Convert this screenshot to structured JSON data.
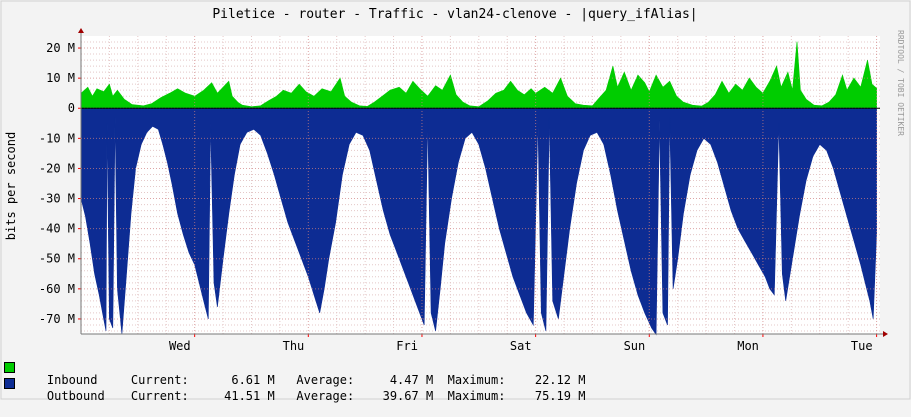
{
  "watermark": "RRDTOOL / TOBI OETIKER",
  "chart_data": {
    "type": "area",
    "title": "Piletice - router - Traffic - vlan24-clenove - |query_ifAlias|",
    "ylabel": "bits per second",
    "ylim": [
      -75000000,
      24000000
    ],
    "y_ticks": [
      {
        "value": 20000000,
        "label": "20 M"
      },
      {
        "value": 10000000,
        "label": "10 M"
      },
      {
        "value": 0,
        "label": "0"
      },
      {
        "value": -10000000,
        "label": "-10 M"
      },
      {
        "value": -20000000,
        "label": "-20 M"
      },
      {
        "value": -30000000,
        "label": "-30 M"
      },
      {
        "value": -40000000,
        "label": "-40 M"
      },
      {
        "value": -50000000,
        "label": "-50 M"
      },
      {
        "value": -60000000,
        "label": "-60 M"
      },
      {
        "value": -70000000,
        "label": "-70 M"
      }
    ],
    "x_ticks": [
      {
        "value": 1,
        "label": "Wed"
      },
      {
        "value": 2,
        "label": "Thu"
      },
      {
        "value": 3,
        "label": "Fri"
      },
      {
        "value": 4,
        "label": "Sat"
      },
      {
        "value": 5,
        "label": "Sun"
      },
      {
        "value": 6,
        "label": "Mon"
      },
      {
        "value": 7,
        "label": "Tue"
      }
    ],
    "xlim": [
      0,
      7.03
    ],
    "grid": true,
    "series": [
      {
        "name": "Inbound",
        "color": "#00cc00",
        "current": "6.61 M",
        "average": "4.47 M",
        "maximum": "22.12 M",
        "points": [
          [
            0.0,
            5.0
          ],
          [
            0.06,
            7.0
          ],
          [
            0.1,
            4.0
          ],
          [
            0.14,
            6.5
          ],
          [
            0.2,
            5.5
          ],
          [
            0.25,
            8.0
          ],
          [
            0.28,
            4.0
          ],
          [
            0.32,
            6.0
          ],
          [
            0.38,
            3.0
          ],
          [
            0.45,
            1.2
          ],
          [
            0.55,
            0.8
          ],
          [
            0.62,
            1.5
          ],
          [
            0.7,
            3.5
          ],
          [
            0.78,
            5.0
          ],
          [
            0.85,
            6.5
          ],
          [
            0.92,
            5.0
          ],
          [
            1.0,
            4.0
          ],
          [
            1.08,
            6.0
          ],
          [
            1.15,
            8.5
          ],
          [
            1.2,
            5.0
          ],
          [
            1.25,
            7.0
          ],
          [
            1.3,
            9.0
          ],
          [
            1.33,
            4.0
          ],
          [
            1.38,
            2.0
          ],
          [
            1.42,
            1.0
          ],
          [
            1.5,
            0.5
          ],
          [
            1.58,
            0.8
          ],
          [
            1.65,
            2.5
          ],
          [
            1.72,
            4.0
          ],
          [
            1.78,
            6.0
          ],
          [
            1.85,
            5.0
          ],
          [
            1.92,
            8.0
          ],
          [
            1.98,
            5.5
          ],
          [
            2.05,
            4.0
          ],
          [
            2.12,
            6.5
          ],
          [
            2.2,
            5.5
          ],
          [
            2.28,
            10.0
          ],
          [
            2.32,
            4.0
          ],
          [
            2.38,
            2.0
          ],
          [
            2.45,
            0.8
          ],
          [
            2.52,
            0.6
          ],
          [
            2.58,
            2.0
          ],
          [
            2.65,
            4.0
          ],
          [
            2.72,
            6.0
          ],
          [
            2.8,
            7.0
          ],
          [
            2.86,
            5.0
          ],
          [
            2.92,
            9.0
          ],
          [
            2.98,
            6.5
          ],
          [
            3.05,
            4.0
          ],
          [
            3.12,
            7.5
          ],
          [
            3.18,
            6.0
          ],
          [
            3.25,
            11.0
          ],
          [
            3.3,
            4.5
          ],
          [
            3.36,
            2.0
          ],
          [
            3.42,
            0.8
          ],
          [
            3.5,
            0.5
          ],
          [
            3.58,
            2.5
          ],
          [
            3.65,
            5.0
          ],
          [
            3.72,
            6.0
          ],
          [
            3.78,
            9.0
          ],
          [
            3.84,
            6.0
          ],
          [
            3.9,
            4.5
          ],
          [
            3.96,
            6.5
          ],
          [
            4.0,
            5.0
          ],
          [
            4.08,
            7.0
          ],
          [
            4.15,
            5.0
          ],
          [
            4.22,
            10.0
          ],
          [
            4.28,
            4.0
          ],
          [
            4.35,
            1.5
          ],
          [
            4.42,
            1.0
          ],
          [
            4.5,
            0.8
          ],
          [
            4.55,
            3.0
          ],
          [
            4.62,
            6.0
          ],
          [
            4.68,
            14.0
          ],
          [
            4.72,
            7.0
          ],
          [
            4.78,
            12.0
          ],
          [
            4.84,
            6.0
          ],
          [
            4.9,
            11.0
          ],
          [
            4.96,
            8.5
          ],
          [
            5.0,
            5.5
          ],
          [
            5.06,
            11.0
          ],
          [
            5.12,
            7.0
          ],
          [
            5.18,
            9.0
          ],
          [
            5.24,
            4.0
          ],
          [
            5.3,
            2.0
          ],
          [
            5.38,
            1.0
          ],
          [
            5.46,
            0.7
          ],
          [
            5.52,
            2.0
          ],
          [
            5.58,
            4.5
          ],
          [
            5.64,
            9.0
          ],
          [
            5.7,
            5.0
          ],
          [
            5.76,
            8.0
          ],
          [
            5.82,
            6.0
          ],
          [
            5.88,
            10.0
          ],
          [
            5.94,
            7.0
          ],
          [
            6.0,
            5.0
          ],
          [
            6.06,
            9.0
          ],
          [
            6.12,
            14.0
          ],
          [
            6.16,
            7.0
          ],
          [
            6.22,
            12.0
          ],
          [
            6.26,
            6.0
          ],
          [
            6.3,
            22.12
          ],
          [
            6.33,
            6.0
          ],
          [
            6.38,
            3.0
          ],
          [
            6.45,
            1.0
          ],
          [
            6.52,
            0.8
          ],
          [
            6.58,
            2.0
          ],
          [
            6.64,
            4.5
          ],
          [
            6.7,
            11.0
          ],
          [
            6.74,
            6.0
          ],
          [
            6.8,
            10.0
          ],
          [
            6.86,
            7.0
          ],
          [
            6.92,
            16.0
          ],
          [
            6.96,
            8.0
          ],
          [
            7.0,
            6.61
          ]
        ]
      },
      {
        "name": "Outbound",
        "color": "#0d2c93",
        "current": "41.51 M",
        "average": "39.67 M",
        "maximum": "75.19 M",
        "points": [
          [
            0.0,
            -30.0
          ],
          [
            0.04,
            -36.0
          ],
          [
            0.08,
            -45.0
          ],
          [
            0.12,
            -55.0
          ],
          [
            0.16,
            -62.0
          ],
          [
            0.2,
            -70.0
          ],
          [
            0.22,
            -74.0
          ],
          [
            0.23,
            -5.0
          ],
          [
            0.25,
            -70.0
          ],
          [
            0.28,
            -73.0
          ],
          [
            0.3,
            -3.0
          ],
          [
            0.32,
            -60.0
          ],
          [
            0.36,
            -75.0
          ],
          [
            0.4,
            -55.0
          ],
          [
            0.44,
            -35.0
          ],
          [
            0.48,
            -20.0
          ],
          [
            0.53,
            -12.0
          ],
          [
            0.58,
            -8.0
          ],
          [
            0.63,
            -6.0
          ],
          [
            0.68,
            -7.0
          ],
          [
            0.72,
            -12.0
          ],
          [
            0.76,
            -18.0
          ],
          [
            0.8,
            -25.0
          ],
          [
            0.85,
            -35.0
          ],
          [
            0.9,
            -42.0
          ],
          [
            0.95,
            -48.0
          ],
          [
            1.0,
            -52.0
          ],
          [
            1.04,
            -58.0
          ],
          [
            1.08,
            -64.0
          ],
          [
            1.12,
            -70.0
          ],
          [
            1.14,
            -5.0
          ],
          [
            1.17,
            -58.0
          ],
          [
            1.2,
            -66.0
          ],
          [
            1.25,
            -50.0
          ],
          [
            1.3,
            -35.0
          ],
          [
            1.35,
            -22.0
          ],
          [
            1.4,
            -12.0
          ],
          [
            1.46,
            -8.0
          ],
          [
            1.52,
            -7.0
          ],
          [
            1.58,
            -9.0
          ],
          [
            1.64,
            -15.0
          ],
          [
            1.7,
            -22.0
          ],
          [
            1.76,
            -30.0
          ],
          [
            1.82,
            -38.0
          ],
          [
            1.88,
            -44.0
          ],
          [
            1.94,
            -50.0
          ],
          [
            2.0,
            -56.0
          ],
          [
            2.05,
            -62.0
          ],
          [
            2.1,
            -68.0
          ],
          [
            2.14,
            -60.0
          ],
          [
            2.18,
            -50.0
          ],
          [
            2.24,
            -38.0
          ],
          [
            2.3,
            -22.0
          ],
          [
            2.36,
            -12.0
          ],
          [
            2.42,
            -8.0
          ],
          [
            2.48,
            -9.0
          ],
          [
            2.54,
            -14.0
          ],
          [
            2.6,
            -24.0
          ],
          [
            2.66,
            -34.0
          ],
          [
            2.72,
            -42.0
          ],
          [
            2.78,
            -48.0
          ],
          [
            2.84,
            -54.0
          ],
          [
            2.9,
            -60.0
          ],
          [
            2.96,
            -66.0
          ],
          [
            3.02,
            -72.0
          ],
          [
            3.05,
            -4.0
          ],
          [
            3.08,
            -68.0
          ],
          [
            3.12,
            -74.0
          ],
          [
            3.16,
            -60.0
          ],
          [
            3.2,
            -45.0
          ],
          [
            3.26,
            -30.0
          ],
          [
            3.32,
            -18.0
          ],
          [
            3.38,
            -10.0
          ],
          [
            3.44,
            -8.0
          ],
          [
            3.5,
            -12.0
          ],
          [
            3.56,
            -20.0
          ],
          [
            3.62,
            -30.0
          ],
          [
            3.68,
            -40.0
          ],
          [
            3.74,
            -48.0
          ],
          [
            3.8,
            -56.0
          ],
          [
            3.86,
            -62.0
          ],
          [
            3.92,
            -68.0
          ],
          [
            3.98,
            -72.0
          ],
          [
            4.02,
            -4.0
          ],
          [
            4.05,
            -68.0
          ],
          [
            4.09,
            -74.0
          ],
          [
            4.12,
            -3.0
          ],
          [
            4.15,
            -64.0
          ],
          [
            4.2,
            -70.0
          ],
          [
            4.25,
            -55.0
          ],
          [
            4.3,
            -40.0
          ],
          [
            4.36,
            -25.0
          ],
          [
            4.42,
            -14.0
          ],
          [
            4.48,
            -9.0
          ],
          [
            4.54,
            -8.0
          ],
          [
            4.6,
            -12.0
          ],
          [
            4.66,
            -22.0
          ],
          [
            4.72,
            -34.0
          ],
          [
            4.78,
            -44.0
          ],
          [
            4.84,
            -54.0
          ],
          [
            4.9,
            -62.0
          ],
          [
            4.96,
            -68.0
          ],
          [
            5.02,
            -73.0
          ],
          [
            5.06,
            -75.19
          ],
          [
            5.09,
            -4.0
          ],
          [
            5.12,
            -68.0
          ],
          [
            5.16,
            -72.0
          ],
          [
            5.18,
            -3.0
          ],
          [
            5.21,
            -60.0
          ],
          [
            5.25,
            -50.0
          ],
          [
            5.3,
            -35.0
          ],
          [
            5.36,
            -22.0
          ],
          [
            5.42,
            -14.0
          ],
          [
            5.48,
            -10.0
          ],
          [
            5.54,
            -12.0
          ],
          [
            5.6,
            -18.0
          ],
          [
            5.66,
            -26.0
          ],
          [
            5.72,
            -34.0
          ],
          [
            5.78,
            -40.0
          ],
          [
            5.84,
            -44.0
          ],
          [
            5.9,
            -48.0
          ],
          [
            5.96,
            -52.0
          ],
          [
            6.02,
            -56.0
          ],
          [
            6.06,
            -60.0
          ],
          [
            6.1,
            -62.0
          ],
          [
            6.14,
            -5.0
          ],
          [
            6.17,
            -55.0
          ],
          [
            6.2,
            -64.0
          ],
          [
            6.26,
            -50.0
          ],
          [
            6.32,
            -36.0
          ],
          [
            6.38,
            -24.0
          ],
          [
            6.44,
            -16.0
          ],
          [
            6.5,
            -12.0
          ],
          [
            6.56,
            -14.0
          ],
          [
            6.62,
            -20.0
          ],
          [
            6.68,
            -28.0
          ],
          [
            6.74,
            -36.0
          ],
          [
            6.8,
            -44.0
          ],
          [
            6.86,
            -52.0
          ],
          [
            6.9,
            -58.0
          ],
          [
            6.94,
            -64.0
          ],
          [
            6.97,
            -70.0
          ],
          [
            7.0,
            -41.51
          ]
        ]
      }
    ],
    "legend_labels": {
      "current": "Current:",
      "average": "Average:",
      "maximum": "Maximum:"
    }
  }
}
